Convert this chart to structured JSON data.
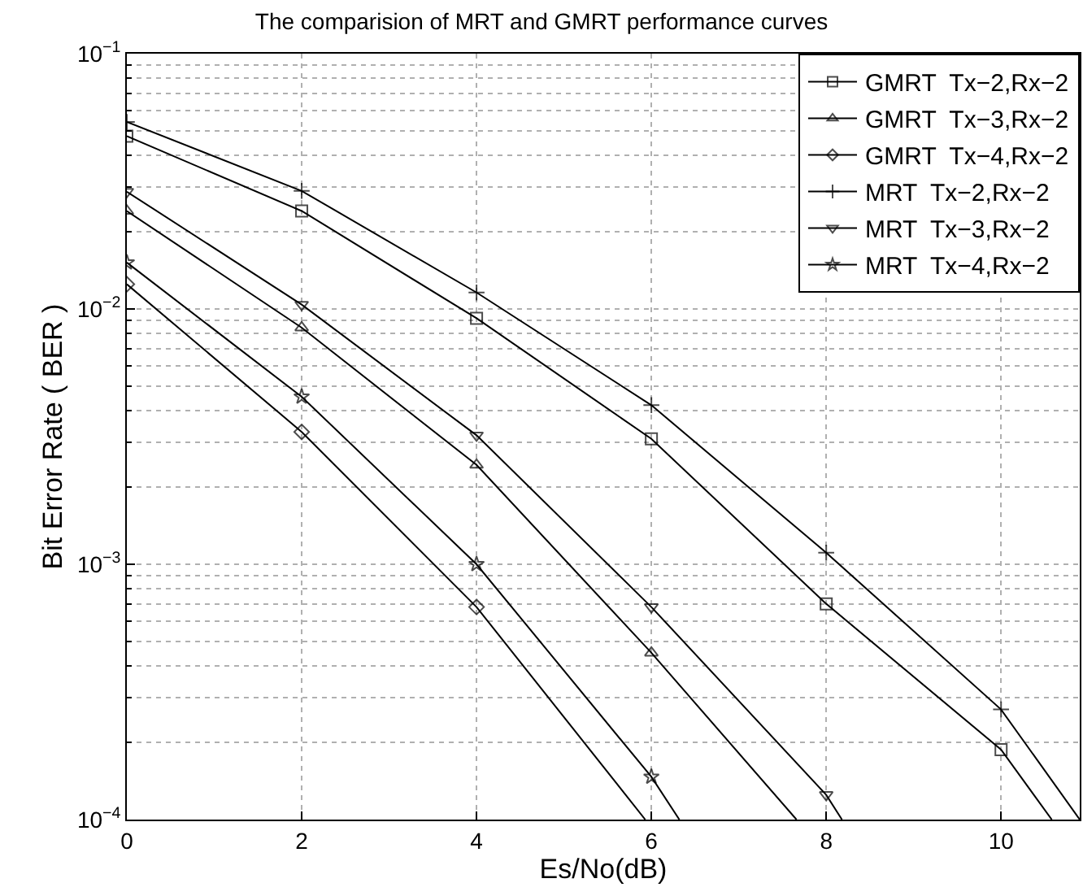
{
  "chart_data": {
    "type": "line",
    "title": "The comparision of MRT and GMRT performance curves",
    "xlabel": "Es/No(dB)",
    "ylabel": "Bit Error Rate ( BER )",
    "log": "y",
    "grid": true,
    "legend": "top right",
    "line_style": "solid",
    "xlim": [
      0,
      10.9
    ],
    "xticks": [
      0,
      2,
      4,
      6,
      8,
      10
    ],
    "ylim": [
      0.0001,
      0.1
    ],
    "yticks": [
      {
        "value": 0.1,
        "label": "10$^{−1}$"
      },
      {
        "value": 0.01,
        "label": "10$^{−2}$"
      },
      {
        "value": 0.001,
        "label": "10$^{−3}$"
      },
      {
        "value": 0.0001,
        "label": "10$^{−4}$"
      }
    ],
    "series": [
      {
        "name": "GMRT  Tx−2,Rx−2",
        "color": "#000000",
        "marker": "square",
        "x": [
          0,
          2,
          4,
          6,
          8,
          10,
          10.58
        ],
        "values": [
          0.0475,
          0.0242,
          0.0092,
          0.0031,
          0.0007,
          0.000188,
          0.0001
        ]
      },
      {
        "name": "GMRT  Tx−3,Rx−2",
        "color": "#000000",
        "marker": "triangle",
        "x": [
          0,
          2,
          4,
          6,
          7.66
        ],
        "values": [
          0.0242,
          0.00845,
          0.00245,
          0.00045,
          0.0001
        ]
      },
      {
        "name": "GMRT  Tx−4,Rx−2",
        "color": "#000000",
        "marker": "diamond",
        "x": [
          0,
          2,
          4,
          5.93
        ],
        "values": [
          0.0125,
          0.0033,
          0.00068,
          0.0001
        ]
      },
      {
        "name": "MRT  Tx−2,Rx−2",
        "color": "#000000",
        "marker": "cross",
        "x": [
          0,
          2,
          4,
          6,
          8,
          10,
          10.9
        ],
        "values": [
          0.054,
          0.029,
          0.0116,
          0.0042,
          0.00111,
          0.00027,
          0.0001
        ]
      },
      {
        "name": "MRT  Tx−3,Rx−2",
        "color": "#000000",
        "marker": "triangle-down",
        "x": [
          0,
          2,
          4,
          6,
          8,
          8.18
        ],
        "values": [
          0.0288,
          0.0104,
          0.0032,
          0.00068,
          0.000125,
          0.0001
        ]
      },
      {
        "name": "MRT  Tx−4,Rx−2",
        "color": "#000000",
        "marker": "star",
        "x": [
          0,
          2,
          4,
          6,
          6.32
        ],
        "values": [
          0.0152,
          0.00453,
          0.001,
          0.000147,
          0.0001
        ]
      }
    ]
  }
}
